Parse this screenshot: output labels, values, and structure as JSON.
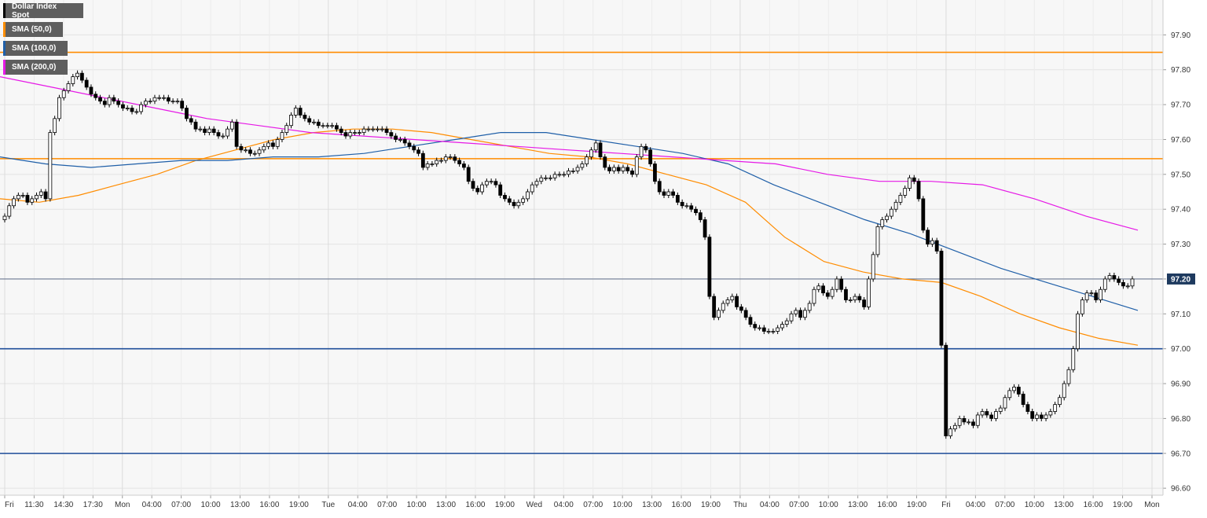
{
  "legend": [
    {
      "label": "Dollar Index Spot",
      "color": "#000000"
    },
    {
      "label": "SMA (50,0)",
      "color": "#ff8c00"
    },
    {
      "label": "SMA (100,0)",
      "color": "#1f5fa8"
    },
    {
      "label": "SMA (200,0)",
      "color": "#e619e6"
    }
  ],
  "chart_data": {
    "type": "candlestick",
    "title": "",
    "xlabel": "",
    "ylabel": "",
    "ylim": [
      96.58,
      98.0
    ],
    "y_ticks": [
      "97.90",
      "97.80",
      "97.70",
      "97.60",
      "97.50",
      "97.40",
      "97.30",
      "97.20",
      "97.10",
      "97.00",
      "96.90",
      "96.80",
      "96.70",
      "96.60"
    ],
    "x_ticks": [
      "Fri",
      "11:30",
      "14:30",
      "17:30",
      "Mon",
      "04:00",
      "07:00",
      "10:00",
      "13:00",
      "16:00",
      "19:00",
      "Tue",
      "04:00",
      "07:00",
      "10:00",
      "13:00",
      "16:00",
      "19:00",
      "Wed",
      "04:00",
      "07:00",
      "10:00",
      "13:00",
      "16:00",
      "19:00",
      "Thu",
      "04:00",
      "07:00",
      "10:00",
      "13:00",
      "16:00",
      "19:00",
      "Fri",
      "04:00",
      "07:00",
      "10:00",
      "13:00",
      "16:00",
      "19:00",
      "Mon"
    ],
    "current_price": "97.20",
    "current_price_value": 97.2,
    "horizontal_levels": [
      {
        "value": 97.85,
        "color": "#ff8c00"
      },
      {
        "value": 97.545,
        "color": "#ff8c00"
      },
      {
        "value": 97.0,
        "color": "#1f4e9a"
      },
      {
        "value": 96.7,
        "color": "#1f4e9a"
      }
    ],
    "grid": true,
    "ohlc_close": [
      97.38,
      97.41,
      97.43,
      97.44,
      97.44,
      97.42,
      97.43,
      97.44,
      97.45,
      97.43,
      97.62,
      97.66,
      97.72,
      97.74,
      97.76,
      97.78,
      97.79,
      97.77,
      97.75,
      97.73,
      97.72,
      97.71,
      97.7,
      97.72,
      97.71,
      97.7,
      97.69,
      97.69,
      97.68,
      97.68,
      97.7,
      97.71,
      97.71,
      97.72,
      97.72,
      97.72,
      97.71,
      97.71,
      97.71,
      97.69,
      97.66,
      97.65,
      97.63,
      97.63,
      97.62,
      97.63,
      97.62,
      97.61,
      97.61,
      97.63,
      97.65,
      97.58,
      97.57,
      97.57,
      97.56,
      97.56,
      97.57,
      97.58,
      97.59,
      97.58,
      97.6,
      97.62,
      97.64,
      97.67,
      97.69,
      97.67,
      97.66,
      97.65,
      97.65,
      97.64,
      97.64,
      97.64,
      97.64,
      97.63,
      97.62,
      97.61,
      97.62,
      97.62,
      97.62,
      97.63,
      97.63,
      97.63,
      97.63,
      97.63,
      97.62,
      97.61,
      97.6,
      97.6,
      97.59,
      97.58,
      97.57,
      97.56,
      97.52,
      97.53,
      97.53,
      97.54,
      97.54,
      97.55,
      97.55,
      97.54,
      97.53,
      97.52,
      97.48,
      97.46,
      97.45,
      97.47,
      97.48,
      97.48,
      97.47,
      97.44,
      97.43,
      97.42,
      97.41,
      97.42,
      97.43,
      97.45,
      97.47,
      97.48,
      97.49,
      97.49,
      97.49,
      97.5,
      97.5,
      97.5,
      97.51,
      97.51,
      97.52,
      97.53,
      97.55,
      97.57,
      97.59,
      97.55,
      97.52,
      97.51,
      97.52,
      97.51,
      97.52,
      97.51,
      97.5,
      97.55,
      97.58,
      97.57,
      97.53,
      97.48,
      97.45,
      97.44,
      97.45,
      97.44,
      97.42,
      97.41,
      97.41,
      97.4,
      97.39,
      97.37,
      97.32,
      97.15,
      97.09,
      97.11,
      97.13,
      97.14,
      97.15,
      97.12,
      97.11,
      97.09,
      97.07,
      97.06,
      97.06,
      97.05,
      97.05,
      97.05,
      97.06,
      97.07,
      97.08,
      97.1,
      97.11,
      97.09,
      97.11,
      97.13,
      97.17,
      97.18,
      97.16,
      97.15,
      97.17,
      97.2,
      97.17,
      97.14,
      97.14,
      97.15,
      97.14,
      97.12,
      97.2,
      97.27,
      97.35,
      97.37,
      97.38,
      97.4,
      97.42,
      97.44,
      97.46,
      97.49,
      97.48,
      97.43,
      97.34,
      97.3,
      97.31,
      97.28,
      97.01,
      96.75,
      96.77,
      96.78,
      96.8,
      96.79,
      96.79,
      96.78,
      96.81,
      96.82,
      96.81,
      96.8,
      96.82,
      96.83,
      96.86,
      96.88,
      96.89,
      96.87,
      96.84,
      96.82,
      96.8,
      96.81,
      96.8,
      96.81,
      96.82,
      96.84,
      96.86,
      96.9,
      96.94,
      97.0,
      97.1,
      97.14,
      97.16,
      97.16,
      97.14,
      97.17,
      97.2,
      97.21,
      97.2,
      97.19,
      97.18,
      97.18,
      97.2
    ],
    "series": [
      {
        "name": "SMA (50,0)",
        "values": [
          97.43,
          97.42,
          97.44,
          97.47,
          97.5,
          97.54,
          97.57,
          97.6,
          97.62,
          97.63,
          97.63,
          97.62,
          97.6,
          97.58,
          97.56,
          97.55,
          97.53,
          97.5,
          97.47,
          97.42,
          97.32,
          97.25,
          97.22,
          97.2,
          97.19,
          97.15,
          97.1,
          97.06,
          97.03,
          97.01
        ]
      },
      {
        "name": "SMA (100,0)",
        "values": [
          97.55,
          97.53,
          97.52,
          97.53,
          97.54,
          97.54,
          97.55,
          97.55,
          97.56,
          97.58,
          97.6,
          97.62,
          97.62,
          97.6,
          97.58,
          97.56,
          97.53,
          97.47,
          97.42,
          97.37,
          97.33,
          97.28,
          97.23,
          97.19,
          97.15,
          97.11
        ]
      },
      {
        "name": "SMA (200,0)",
        "values": [
          97.78,
          97.75,
          97.72,
          97.69,
          97.66,
          97.64,
          97.62,
          97.61,
          97.6,
          97.59,
          97.58,
          97.57,
          97.56,
          97.55,
          97.54,
          97.53,
          97.5,
          97.48,
          97.48,
          97.47,
          97.43,
          97.38,
          97.34
        ]
      }
    ]
  }
}
